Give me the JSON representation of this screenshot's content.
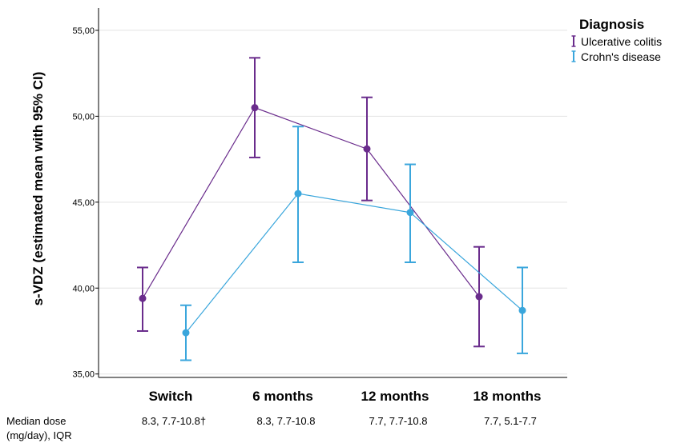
{
  "chart_data": {
    "type": "line",
    "title": "",
    "xlabel": "",
    "ylabel": "s-VDZ (estimated mean with 95% CI)",
    "ylim": [
      34.8,
      56.3
    ],
    "yticks": [
      "35,00",
      "40,00",
      "45,00",
      "50,00",
      "55,00"
    ],
    "ytick_values": [
      35,
      40,
      45,
      50,
      55
    ],
    "categories": [
      "Switch",
      "6 months",
      "12 months",
      "18 months"
    ],
    "grid": true,
    "legend_placement": "top-right",
    "legend_title": "Diagnosis",
    "series": [
      {
        "name": "Ulcerative colitis",
        "color": "#6a2c8c",
        "values": [
          39.4,
          50.5,
          48.1,
          39.5
        ],
        "ci_low": [
          37.5,
          47.6,
          45.1,
          36.6
        ],
        "ci_high": [
          41.2,
          53.4,
          51.1,
          42.4
        ]
      },
      {
        "name": "Crohn's disease",
        "color": "#3aa6dc",
        "values": [
          37.4,
          45.5,
          44.4,
          38.7
        ],
        "ci_low": [
          35.8,
          41.5,
          41.5,
          36.2
        ],
        "ci_high": [
          39.0,
          49.4,
          47.2,
          41.2
        ]
      }
    ]
  },
  "dose_row": {
    "label_line1": "Median dose",
    "label_line2": "(mg/day), IQR",
    "values": [
      "8.3, 7.7-10.8†",
      "8.3, 7.7-10.8",
      "7.7, 7.7-10.8",
      "7.7, 5.1-7.7"
    ]
  }
}
